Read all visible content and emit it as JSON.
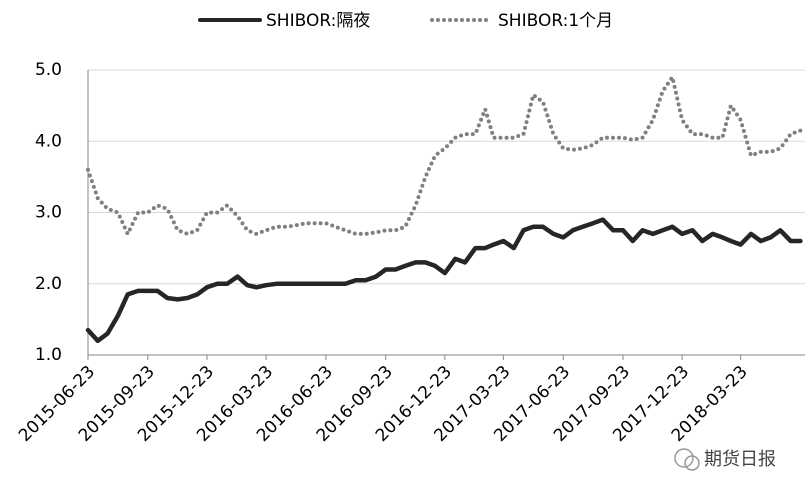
{
  "chart_data": {
    "type": "line",
    "x": [
      "2015-06-23",
      "2015-07-08",
      "2015-07-23",
      "2015-08-08",
      "2015-08-23",
      "2015-09-08",
      "2015-09-23",
      "2015-10-08",
      "2015-10-23",
      "2015-11-08",
      "2015-11-23",
      "2015-12-08",
      "2015-12-23",
      "2016-01-08",
      "2016-01-23",
      "2016-02-08",
      "2016-02-23",
      "2016-03-08",
      "2016-03-23",
      "2016-04-08",
      "2016-04-23",
      "2016-05-08",
      "2016-05-23",
      "2016-06-08",
      "2016-06-23",
      "2016-07-08",
      "2016-07-23",
      "2016-08-08",
      "2016-08-23",
      "2016-09-08",
      "2016-09-23",
      "2016-10-08",
      "2016-10-23",
      "2016-11-08",
      "2016-11-23",
      "2016-12-08",
      "2016-12-23",
      "2017-01-08",
      "2017-01-23",
      "2017-02-08",
      "2017-02-23",
      "2017-03-08",
      "2017-03-23",
      "2017-04-08",
      "2017-04-23",
      "2017-05-08",
      "2017-05-23",
      "2017-06-08",
      "2017-06-23",
      "2017-07-08",
      "2017-07-23",
      "2017-08-08",
      "2017-08-23",
      "2017-09-08",
      "2017-09-23",
      "2017-10-08",
      "2017-10-23",
      "2017-11-08",
      "2017-11-23",
      "2017-12-08",
      "2017-12-23",
      "2018-01-08",
      "2018-01-23",
      "2018-02-08",
      "2018-02-23",
      "2018-03-08",
      "2018-03-23",
      "2018-04-08",
      "2018-04-23",
      "2018-05-08",
      "2018-05-23",
      "2018-06-08",
      "2018-06-23"
    ],
    "series": [
      {
        "name": "SHIBOR:隔夜",
        "color": "#262626",
        "style": "solid",
        "values": [
          1.35,
          1.2,
          1.3,
          1.55,
          1.85,
          1.9,
          1.9,
          1.9,
          1.8,
          1.78,
          1.8,
          1.85,
          1.95,
          2.0,
          2.0,
          2.1,
          1.98,
          1.95,
          1.98,
          2.0,
          2.0,
          2.0,
          2.0,
          2.0,
          2.0,
          2.0,
          2.0,
          2.05,
          2.05,
          2.1,
          2.2,
          2.2,
          2.25,
          2.3,
          2.3,
          2.25,
          2.15,
          2.35,
          2.3,
          2.5,
          2.5,
          2.55,
          2.6,
          2.5,
          2.75,
          2.8,
          2.8,
          2.7,
          2.65,
          2.75,
          2.8,
          2.85,
          2.9,
          2.75,
          2.75,
          2.6,
          2.75,
          2.7,
          2.75,
          2.8,
          2.7,
          2.75,
          2.6,
          2.7,
          2.65,
          2.6,
          2.55,
          2.7,
          2.6,
          2.65,
          2.75,
          2.6,
          2.6
        ]
      },
      {
        "name": "SHIBOR:1个月",
        "color": "#808080",
        "style": "dotted",
        "values": [
          3.6,
          3.2,
          3.05,
          3.0,
          2.7,
          3.0,
          3.0,
          3.1,
          3.05,
          2.75,
          2.7,
          2.75,
          3.0,
          3.0,
          3.1,
          2.95,
          2.75,
          2.7,
          2.75,
          2.8,
          2.8,
          2.82,
          2.85,
          2.85,
          2.85,
          2.8,
          2.75,
          2.7,
          2.7,
          2.72,
          2.75,
          2.75,
          2.8,
          3.1,
          3.5,
          3.8,
          3.9,
          4.05,
          4.1,
          4.1,
          4.45,
          4.05,
          4.05,
          4.05,
          4.1,
          4.65,
          4.55,
          4.1,
          3.9,
          3.88,
          3.9,
          3.95,
          4.05,
          4.05,
          4.05,
          4.02,
          4.05,
          4.3,
          4.7,
          4.9,
          4.3,
          4.1,
          4.1,
          4.05,
          4.05,
          4.5,
          4.3,
          3.8,
          3.85,
          3.85,
          3.9,
          4.1,
          4.15
        ]
      }
    ],
    "xlim": [
      "2015-06-23",
      "2018-06-30"
    ],
    "xticks": [
      "2015-06-23",
      "2015-09-23",
      "2015-12-23",
      "2016-03-23",
      "2016-06-23",
      "2016-09-23",
      "2016-12-23",
      "2017-03-23",
      "2017-06-23",
      "2017-09-23",
      "2017-12-23",
      "2018-03-23"
    ],
    "ylim": [
      1,
      5
    ],
    "yticks": [
      {
        "value": 1,
        "label": "1.0"
      },
      {
        "value": 2,
        "label": "2.0"
      },
      {
        "value": 3,
        "label": "3.0"
      },
      {
        "value": 4,
        "label": "4.0"
      },
      {
        "value": 5,
        "label": "5.0"
      }
    ],
    "grid": true,
    "legend": "top",
    "watermark": "期货日报"
  }
}
